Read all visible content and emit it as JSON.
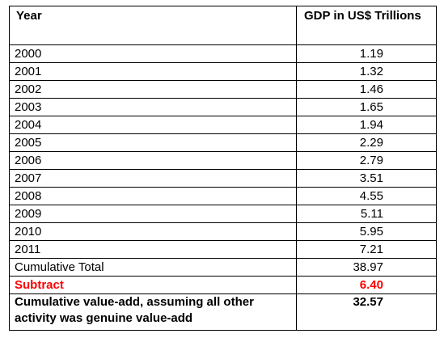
{
  "table": {
    "header": {
      "year": "Year",
      "gdp": "GDP in US$ Trillions"
    },
    "rows": [
      {
        "year": "2000",
        "gdp": "1.19"
      },
      {
        "year": "2001",
        "gdp": "1.32"
      },
      {
        "year": "2002",
        "gdp": "1.46"
      },
      {
        "year": "2003",
        "gdp": "1.65"
      },
      {
        "year": "2004",
        "gdp": "1.94"
      },
      {
        "year": "2005",
        "gdp": "2.29"
      },
      {
        "year": "2006",
        "gdp": "2.79"
      },
      {
        "year": "2007",
        "gdp": "3.51"
      },
      {
        "year": "2008",
        "gdp": "4.55"
      },
      {
        "year": "2009",
        "gdp": "5.11"
      },
      {
        "year": "2010",
        "gdp": "5.95"
      },
      {
        "year": "2011",
        "gdp": "7.21"
      }
    ],
    "cumulative": {
      "label": "Cumulative Total",
      "value": "38.97"
    },
    "subtract": {
      "label": "Subtract",
      "value": "6.40",
      "color": "#ff0000"
    },
    "final": {
      "label": "Cumulative value-add, assuming all other activity was genuine value-add",
      "value": "32.57"
    }
  }
}
